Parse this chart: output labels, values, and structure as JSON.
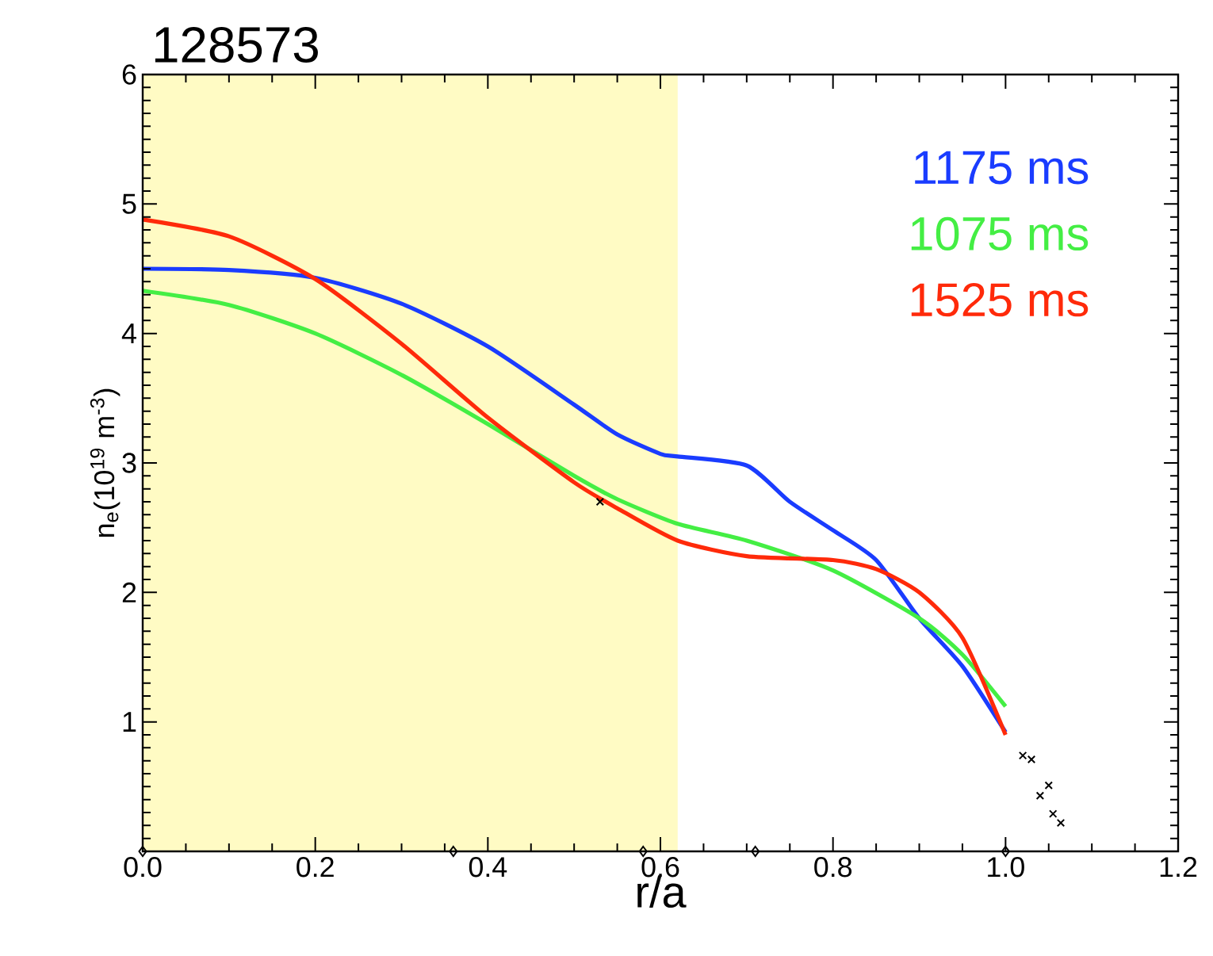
{
  "chart_data": {
    "type": "line",
    "title": "128573",
    "xlabel": "r/a",
    "ylabel": "n$_{e}$(10$^{19}$ m$^{-3}$)",
    "xlim": [
      0,
      1.2
    ],
    "ylim": [
      0,
      6
    ],
    "xticks": [
      {
        "value": 0,
        "label": "0.0"
      },
      0.2,
      0.4,
      0.6,
      0.8,
      {
        "value": 1,
        "label": "1.0"
      },
      1.2
    ],
    "yticks": [
      {
        "value": 0,
        "label": null
      },
      1,
      2,
      3,
      4,
      5,
      6
    ],
    "grid": false,
    "legend": "top right",
    "bands": [
      {
        "axis": "x",
        "from": 0,
        "to": 0.62,
        "color": "#fffbc4"
      }
    ],
    "series": [
      {
        "name": "1175 ms",
        "color": "#1a3cff",
        "x": [
          0,
          0.1,
          0.2,
          0.3,
          0.4,
          0.5,
          0.55,
          0.6,
          0.62,
          0.7,
          0.75,
          0.8,
          0.85,
          0.9,
          0.95,
          1.0
        ],
        "values": [
          4.5,
          4.49,
          4.43,
          4.23,
          3.9,
          3.45,
          3.22,
          3.07,
          3.05,
          2.98,
          2.7,
          2.48,
          2.25,
          1.8,
          1.43,
          0.92
        ]
      },
      {
        "name": "1075 ms",
        "color": "#44ee44",
        "x": [
          0,
          0.1,
          0.2,
          0.3,
          0.4,
          0.5,
          0.55,
          0.62,
          0.7,
          0.8,
          0.9,
          0.95,
          1.0
        ],
        "values": [
          4.33,
          4.22,
          4.0,
          3.68,
          3.3,
          2.9,
          2.72,
          2.53,
          2.4,
          2.17,
          1.8,
          1.52,
          1.12
        ]
      },
      {
        "name": "1525 ms",
        "color": "#ff2a0a",
        "x": [
          0,
          0.1,
          0.2,
          0.3,
          0.4,
          0.5,
          0.55,
          0.62,
          0.7,
          0.8,
          0.85,
          0.9,
          0.95,
          1.0
        ],
        "values": [
          4.88,
          4.75,
          4.42,
          3.92,
          3.35,
          2.85,
          2.65,
          2.4,
          2.28,
          2.25,
          2.18,
          2.0,
          1.65,
          0.9
        ]
      },
      {
        "type": "scatter",
        "marker": "cross",
        "color": "#000000",
        "x": [
          0.53,
          1.02,
          1.03,
          1.04,
          1.05,
          1.055,
          1.064
        ],
        "values": [
          2.7,
          0.74,
          0.71,
          0.43,
          0.51,
          0.29,
          0.22
        ]
      },
      {
        "type": "scatter",
        "marker": "diamond",
        "color": "#000000",
        "x": [
          0,
          0.36,
          0.58,
          0.71,
          1.0
        ],
        "values": [
          0,
          0,
          0,
          0,
          0
        ]
      }
    ]
  }
}
